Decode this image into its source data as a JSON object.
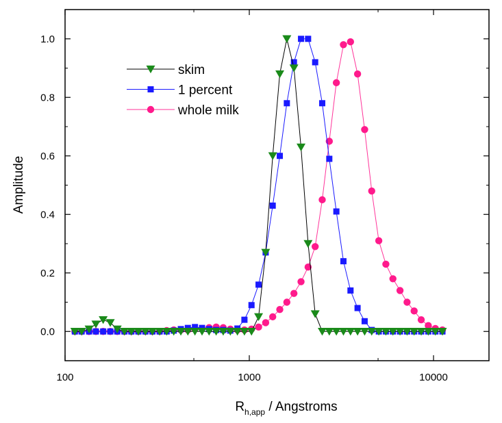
{
  "chart_data": {
    "type": "scatter",
    "title": "",
    "xlabel": {
      "main": "R",
      "sub": "h,app",
      "rest": " / Angstroms"
    },
    "ylabel": "Amplitude",
    "xscale": "log",
    "xlim": [
      100,
      20000
    ],
    "ylim": [
      -0.1,
      1.1
    ],
    "x_ticks": [
      100,
      1000,
      10000
    ],
    "x_tick_labels": [
      "100",
      "1000",
      "10000"
    ],
    "y_ticks": [
      0.0,
      0.2,
      0.4,
      0.6,
      0.8,
      1.0
    ],
    "y_tick_labels": [
      "0.0",
      "0.2",
      "0.4",
      "0.6",
      "0.8",
      "1.0"
    ],
    "grid": false,
    "legend_position": "upper-left",
    "series": [
      {
        "name": "skim",
        "color": "#000000",
        "marker_color": "#1a8a1a",
        "marker": "triangle-down",
        "points": [
          [
            113,
            0
          ],
          [
            123,
            0
          ],
          [
            135,
            0.008
          ],
          [
            147,
            0.025
          ],
          [
            161,
            0.04
          ],
          [
            176,
            0.03
          ],
          [
            192,
            0.008
          ],
          [
            210,
            0
          ],
          [
            229,
            0
          ],
          [
            250,
            0
          ],
          [
            273,
            0
          ],
          [
            298,
            0
          ],
          [
            326,
            0
          ],
          [
            356,
            0
          ],
          [
            389,
            0
          ],
          [
            425,
            0
          ],
          [
            464,
            0
          ],
          [
            507,
            0
          ],
          [
            554,
            0
          ],
          [
            605,
            0
          ],
          [
            661,
            0
          ],
          [
            722,
            0
          ],
          [
            789,
            0
          ],
          [
            862,
            0
          ],
          [
            941,
            0
          ],
          [
            1028,
            0
          ],
          [
            1123,
            0.05
          ],
          [
            1227,
            0.27
          ],
          [
            1340,
            0.6
          ],
          [
            1464,
            0.88
          ],
          [
            1599,
            1.0
          ],
          [
            1747,
            0.9
          ],
          [
            1909,
            0.63
          ],
          [
            2085,
            0.3
          ],
          [
            2278,
            0.06
          ],
          [
            2488,
            0
          ],
          [
            2718,
            0
          ],
          [
            2969,
            0
          ],
          [
            3243,
            0
          ],
          [
            3543,
            0
          ],
          [
            3870,
            0
          ],
          [
            4228,
            0
          ],
          [
            4618,
            0
          ],
          [
            5045,
            0
          ],
          [
            5511,
            0
          ],
          [
            6020,
            0
          ],
          [
            6577,
            0
          ],
          [
            7184,
            0
          ],
          [
            7848,
            0
          ],
          [
            8573,
            0
          ],
          [
            9366,
            0
          ],
          [
            10231,
            0
          ],
          [
            11177,
            0
          ]
        ]
      },
      {
        "name": "1 percent",
        "color": "#1a1aff",
        "marker_color": "#1a1aff",
        "marker": "square",
        "points": [
          [
            113,
            0
          ],
          [
            123,
            0
          ],
          [
            135,
            0
          ],
          [
            147,
            0
          ],
          [
            161,
            0
          ],
          [
            176,
            0
          ],
          [
            192,
            0
          ],
          [
            210,
            0
          ],
          [
            229,
            0
          ],
          [
            250,
            0
          ],
          [
            273,
            0
          ],
          [
            298,
            0
          ],
          [
            326,
            0
          ],
          [
            356,
            0
          ],
          [
            389,
            0.003
          ],
          [
            425,
            0.008
          ],
          [
            464,
            0.012
          ],
          [
            507,
            0.015
          ],
          [
            554,
            0.012
          ],
          [
            605,
            0.008
          ],
          [
            661,
            0.005
          ],
          [
            722,
            0.005
          ],
          [
            789,
            0.003
          ],
          [
            862,
            0.01
          ],
          [
            941,
            0.04
          ],
          [
            1028,
            0.09
          ],
          [
            1123,
            0.16
          ],
          [
            1227,
            0.27
          ],
          [
            1340,
            0.43
          ],
          [
            1464,
            0.6
          ],
          [
            1599,
            0.78
          ],
          [
            1747,
            0.92
          ],
          [
            1909,
            1.0
          ],
          [
            2085,
            1.0
          ],
          [
            2278,
            0.92
          ],
          [
            2488,
            0.78
          ],
          [
            2718,
            0.59
          ],
          [
            2969,
            0.41
          ],
          [
            3243,
            0.24
          ],
          [
            3543,
            0.14
          ],
          [
            3870,
            0.08
          ],
          [
            4228,
            0.035
          ],
          [
            4618,
            0.005
          ],
          [
            5045,
            0
          ],
          [
            5511,
            0
          ],
          [
            6020,
            0
          ],
          [
            6577,
            0
          ],
          [
            7184,
            0
          ],
          [
            7848,
            0
          ],
          [
            8573,
            0
          ],
          [
            9366,
            0
          ],
          [
            10231,
            0
          ],
          [
            11177,
            0
          ]
        ]
      },
      {
        "name": "whole milk",
        "color": "#ff3399",
        "marker_color": "#ff1a8c",
        "marker": "circle",
        "points": [
          [
            113,
            0
          ],
          [
            123,
            0
          ],
          [
            135,
            0
          ],
          [
            147,
            0
          ],
          [
            161,
            0
          ],
          [
            176,
            0
          ],
          [
            192,
            0
          ],
          [
            210,
            0
          ],
          [
            229,
            0
          ],
          [
            250,
            0
          ],
          [
            273,
            0
          ],
          [
            298,
            0
          ],
          [
            326,
            0
          ],
          [
            356,
            0.003
          ],
          [
            389,
            0.005
          ],
          [
            425,
            0.005
          ],
          [
            464,
            0.005
          ],
          [
            507,
            0.008
          ],
          [
            554,
            0.01
          ],
          [
            605,
            0.013
          ],
          [
            661,
            0.015
          ],
          [
            722,
            0.013
          ],
          [
            789,
            0.008
          ],
          [
            862,
            0.005
          ],
          [
            941,
            0.005
          ],
          [
            1028,
            0.008
          ],
          [
            1123,
            0.015
          ],
          [
            1227,
            0.03
          ],
          [
            1340,
            0.05
          ],
          [
            1464,
            0.075
          ],
          [
            1599,
            0.1
          ],
          [
            1747,
            0.13
          ],
          [
            1909,
            0.17
          ],
          [
            2085,
            0.22
          ],
          [
            2278,
            0.29
          ],
          [
            2488,
            0.45
          ],
          [
            2718,
            0.65
          ],
          [
            2969,
            0.85
          ],
          [
            3243,
            0.98
          ],
          [
            3543,
            0.99
          ],
          [
            3870,
            0.88
          ],
          [
            4228,
            0.69
          ],
          [
            4618,
            0.48
          ],
          [
            5045,
            0.31
          ],
          [
            5511,
            0.23
          ],
          [
            6020,
            0.18
          ],
          [
            6577,
            0.14
          ],
          [
            7184,
            0.1
          ],
          [
            7848,
            0.07
          ],
          [
            8573,
            0.04
          ],
          [
            9366,
            0.02
          ],
          [
            10231,
            0.01
          ],
          [
            11177,
            0.005
          ]
        ]
      }
    ]
  }
}
